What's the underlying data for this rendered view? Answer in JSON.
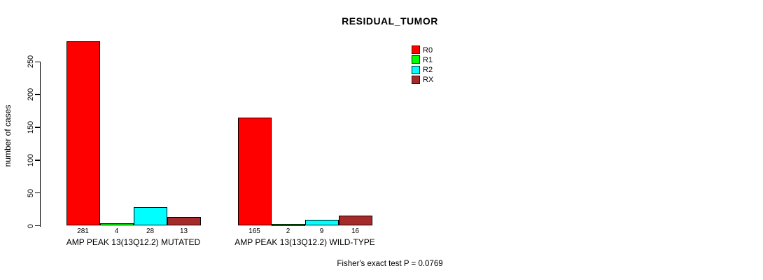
{
  "chart_data": {
    "type": "bar",
    "title": "RESIDUAL_TUMOR",
    "ylabel": "number of cases",
    "xlabel": "",
    "yticks": [
      0,
      50,
      100,
      150,
      200,
      250
    ],
    "ylim": [
      0,
      281
    ],
    "grid": false,
    "show_value_labels": true,
    "categories": [
      "AMP PEAK 13(13Q12.2) MUTATED",
      "AMP PEAK 13(13Q12.2) WILD-TYPE"
    ],
    "series": [
      {
        "name": "R0",
        "color": "#ff0000",
        "values": [
          281,
          165
        ]
      },
      {
        "name": "R1",
        "color": "#00ff00",
        "values": [
          4,
          2
        ]
      },
      {
        "name": "R2",
        "color": "#00ffff",
        "values": [
          28,
          9
        ]
      },
      {
        "name": "RX",
        "color": "#a52a2a",
        "values": [
          13,
          16
        ]
      }
    ],
    "legend": [
      "R0",
      "R1",
      "R2",
      "RX"
    ],
    "legend_position": "top-right",
    "annotation": "Fisher's exact test P = 0.0769"
  },
  "colors": {
    "axis": "#000000",
    "background": "#ffffff",
    "text": "#000000"
  }
}
